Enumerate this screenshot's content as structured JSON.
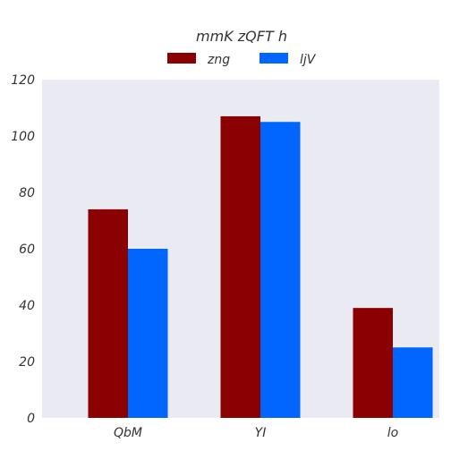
{
  "chart_data": {
    "type": "bar",
    "title": "mmK zQFT h",
    "xlabel": "",
    "ylabel": "",
    "categories": [
      "QbM",
      "YI",
      "lo"
    ],
    "series": [
      {
        "name": "zng",
        "values": [
          74,
          107,
          39
        ],
        "color": "#8b0000"
      },
      {
        "name": "ljV",
        "values": [
          60,
          105,
          25
        ],
        "color": "#0066ff"
      }
    ],
    "ylim": [
      0,
      120
    ],
    "yticks": [
      0,
      20,
      40,
      60,
      80,
      100,
      120
    ],
    "grid": false,
    "legend_position": "top-center",
    "plot_background": "#eaeaf2"
  }
}
